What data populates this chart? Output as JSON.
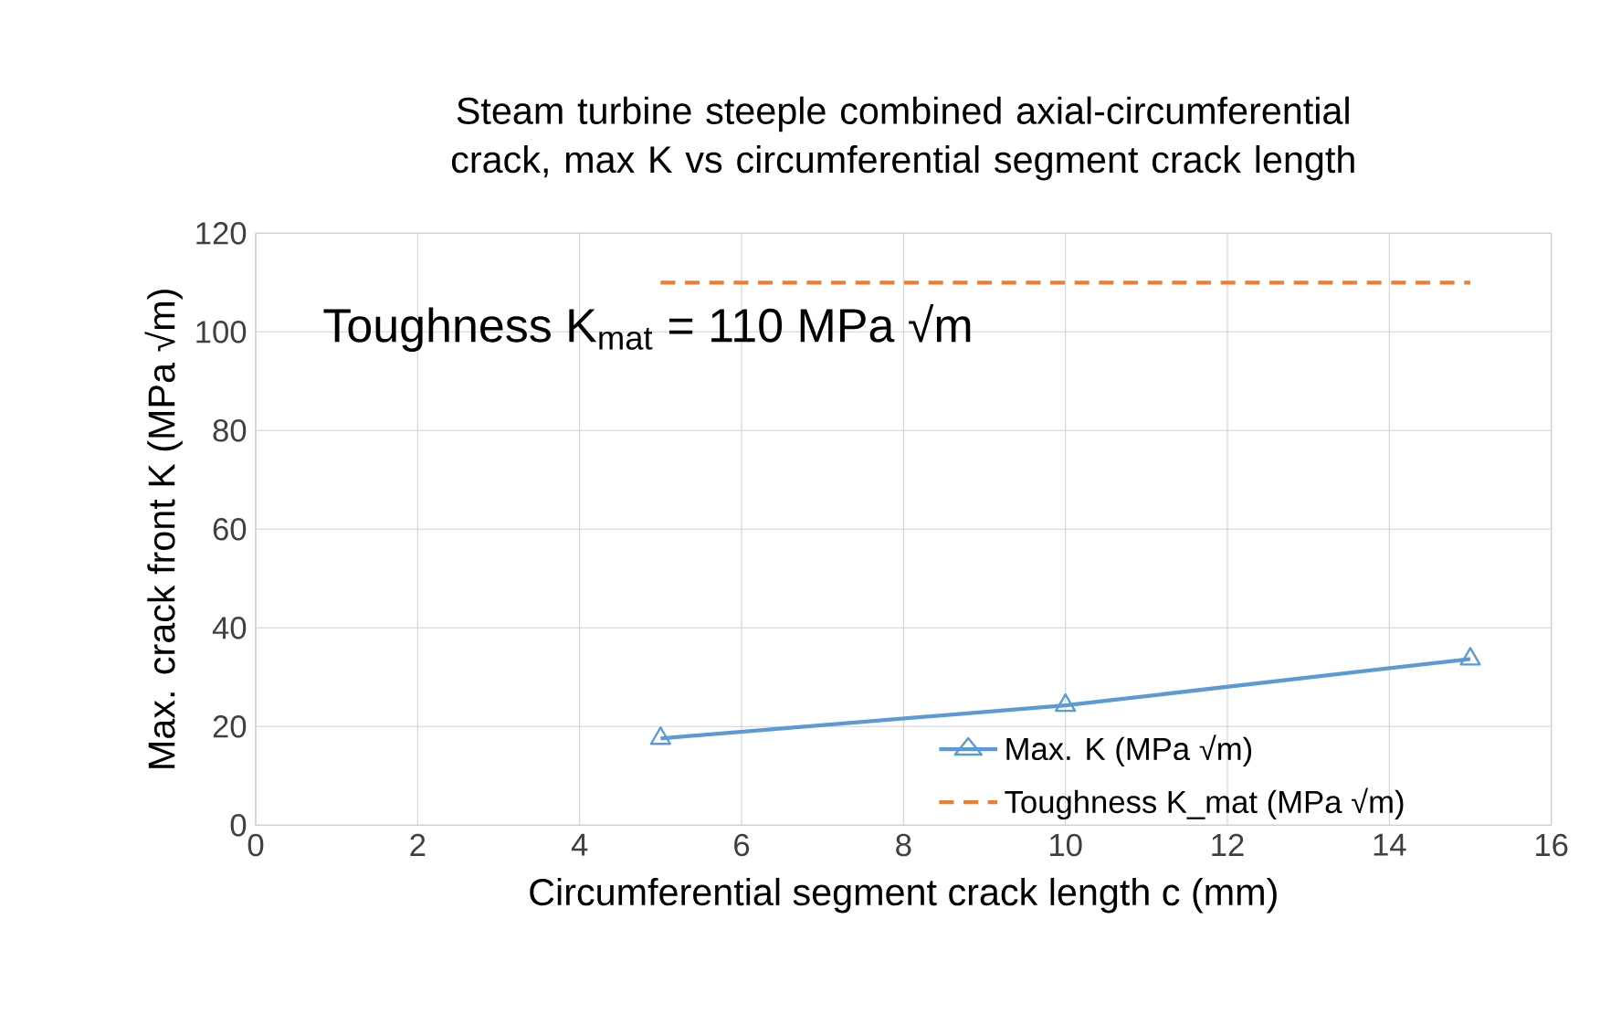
{
  "chart_data": {
    "type": "line",
    "title": "Steam turbine steeple combined axial-circumferential crack, max K vs circumferential segment crack length",
    "xlabel": "Circumferential segment crack length c (mm)",
    "ylabel": "Max. crack front K (MPa √m)",
    "x": [
      5,
      10,
      15
    ],
    "series": [
      {
        "name": "Max. K (MPa √m)",
        "color": "#5b9bd5",
        "values": [
          17.6,
          24.3,
          33.7
        ],
        "marker": "triangle",
        "line_style": "solid"
      },
      {
        "name": "Toughness K_mat (MPa √m)",
        "color": "#ed7d31",
        "values": [
          110,
          110,
          110
        ],
        "marker": "none",
        "line_style": "dashed"
      }
    ],
    "annotations": [
      "Toughness K$_{mat}$ = 110 MPa √m"
    ],
    "xlim": [
      0,
      16
    ],
    "xticks": [
      0,
      2,
      4,
      6,
      8,
      10,
      12,
      14,
      16
    ],
    "ylim": [
      0,
      120
    ],
    "yticks": [
      0,
      20,
      40,
      60,
      80,
      100,
      120
    ],
    "grid": true,
    "legend": "bottom right"
  }
}
